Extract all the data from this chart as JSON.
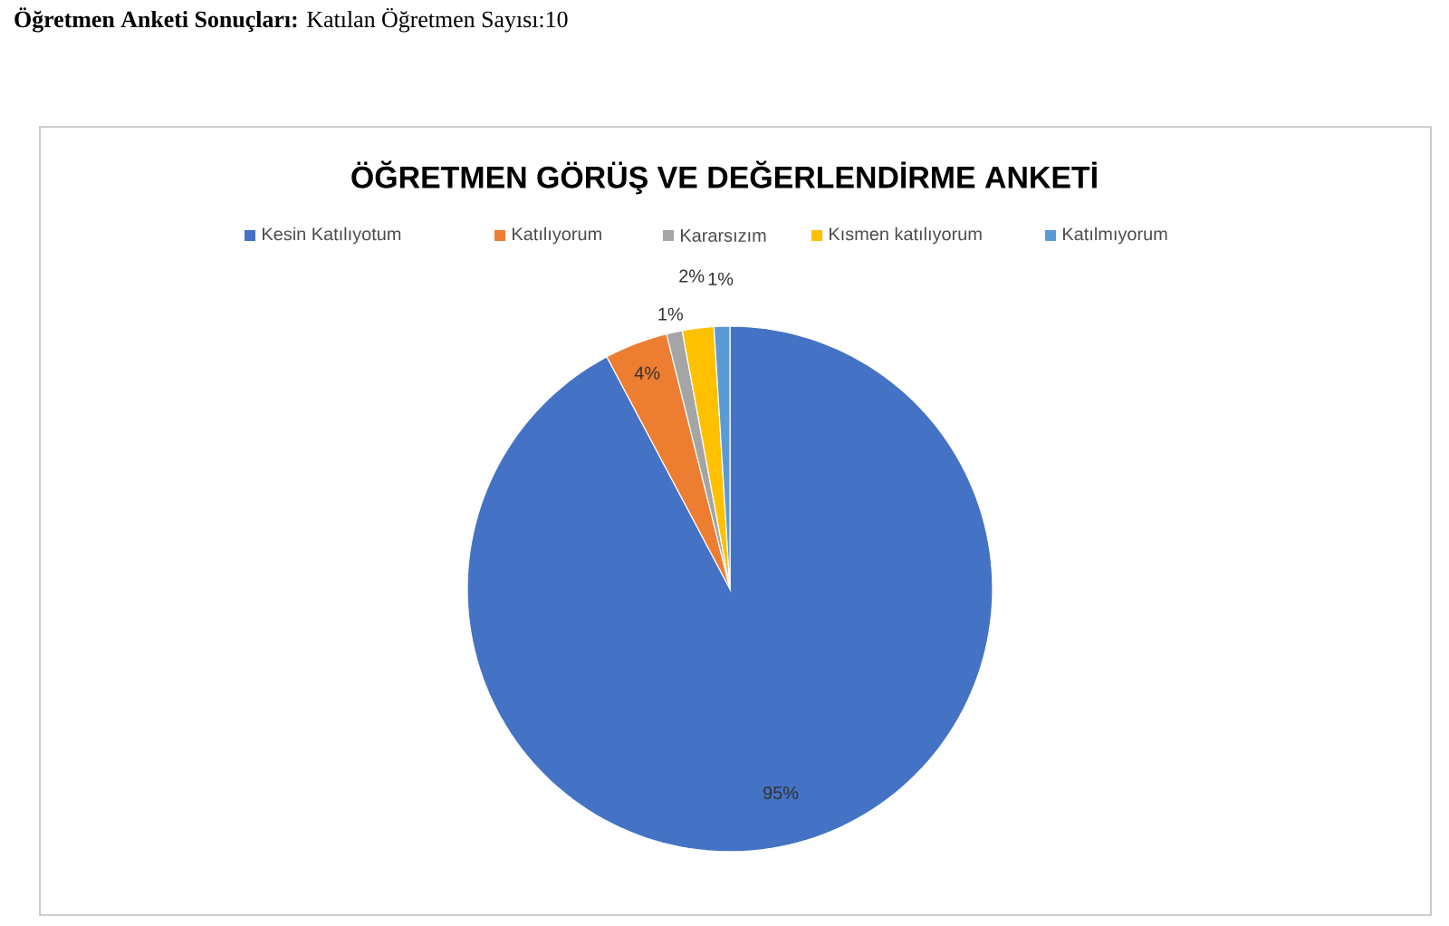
{
  "chart_data": {
    "type": "pie",
    "title": "ÖĞRETMEN GÖRÜŞ VE DEĞERLENDİRME ANKETİ",
    "annotations": [
      "**Öğretmen Anketi Sonuçları:** Katılan Öğretmen Sayısı:10"
    ],
    "categories": [
      "Kesin Katılıyotum",
      "Katılıyorum",
      "Kararsızım",
      "Kısmen katılıyorum",
      "Katılmıyorum"
    ],
    "values": [
      95,
      4,
      1,
      2,
      1
    ],
    "value_labels": [
      "95%",
      "4%",
      "1%",
      "2%",
      "1%"
    ],
    "colors": [
      "#4472c4",
      "#ed7d31",
      "#a5a5a5",
      "#ffc000",
      "#5b9bd5"
    ],
    "legend": "top"
  }
}
